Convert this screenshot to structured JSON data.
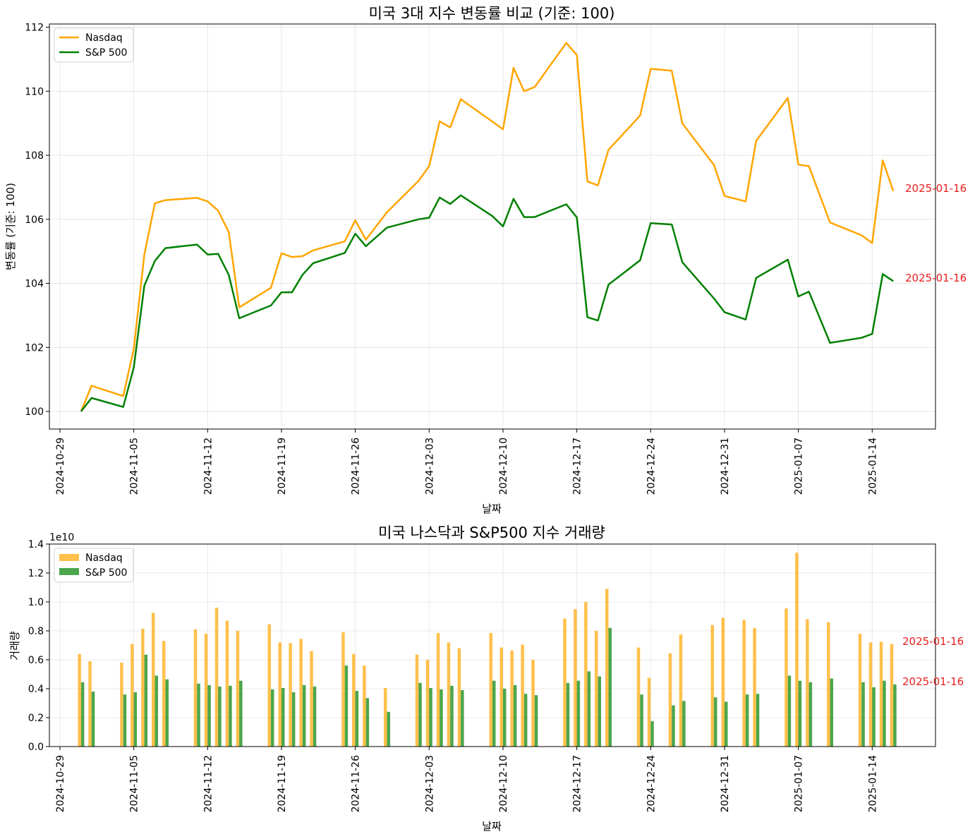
{
  "colors": {
    "nasdaq": "#FFA500",
    "sp500": "#008000",
    "annotation": "#E8201E"
  },
  "top": {
    "title": "미국 3대 지수 변동률 비교 (기준: 100)",
    "xlabel": "날짜",
    "ylabel": "변동률 (기준: 100)",
    "annotations": [
      "2025-01-16",
      "2025-01-16"
    ]
  },
  "bottom": {
    "title": "미국 나스닥과 S&P500 지수 거래량",
    "xlabel": "날짜",
    "ylabel": "거래량",
    "offset_label": "1e10",
    "annotations": [
      "2025-01-16",
      "2025-01-16"
    ]
  },
  "chart_data": [
    {
      "type": "line",
      "title": "미국 3대 지수 변동률 비교 (기준: 100)",
      "xlabel": "날짜",
      "ylabel": "변동률 (기준: 100)",
      "xlim": [
        "2024-10-28",
        "2025-01-20"
      ],
      "ylim": [
        99.45,
        112.1
      ],
      "xticks": [
        "2024-10-29",
        "2024-11-05",
        "2024-11-12",
        "2024-11-19",
        "2024-11-26",
        "2024-12-03",
        "2024-12-10",
        "2024-12-17",
        "2024-12-24",
        "2024-12-31",
        "2025-01-07",
        "2025-01-14"
      ],
      "yticks": [
        100,
        102,
        104,
        106,
        108,
        110,
        112
      ],
      "grid": true,
      "legend": "upper left",
      "x": [
        "2024-10-31",
        "2024-11-01",
        "2024-11-04",
        "2024-11-05",
        "2024-11-06",
        "2024-11-07",
        "2024-11-08",
        "2024-11-11",
        "2024-11-12",
        "2024-11-13",
        "2024-11-14",
        "2024-11-15",
        "2024-11-18",
        "2024-11-19",
        "2024-11-20",
        "2024-11-21",
        "2024-11-22",
        "2024-11-25",
        "2024-11-26",
        "2024-11-27",
        "2024-11-29",
        "2024-12-02",
        "2024-12-03",
        "2024-12-04",
        "2024-12-05",
        "2024-12-06",
        "2024-12-09",
        "2024-12-10",
        "2024-12-11",
        "2024-12-12",
        "2024-12-13",
        "2024-12-16",
        "2024-12-17",
        "2024-12-18",
        "2024-12-19",
        "2024-12-20",
        "2024-12-23",
        "2024-12-24",
        "2024-12-26",
        "2024-12-27",
        "2024-12-30",
        "2024-12-31",
        "2025-01-02",
        "2025-01-03",
        "2025-01-06",
        "2025-01-07",
        "2025-01-08",
        "2025-01-10",
        "2025-01-13",
        "2025-01-14",
        "2025-01-15",
        "2025-01-16"
      ],
      "series": [
        {
          "name": "Nasdaq",
          "values": [
            100.0,
            100.8,
            100.48,
            101.95,
            104.9,
            106.5,
            106.6,
            106.67,
            106.56,
            106.27,
            105.6,
            103.25,
            103.86,
            104.94,
            104.82,
            104.85,
            105.03,
            105.31,
            105.97,
            105.36,
            106.22,
            107.2,
            107.66,
            109.06,
            108.87,
            109.75,
            109.05,
            108.81,
            110.73,
            110.0,
            110.13,
            111.51,
            111.13,
            107.18,
            107.06,
            108.17,
            109.24,
            110.7,
            110.64,
            109.0,
            107.7,
            106.73,
            106.56,
            108.45,
            109.79,
            107.71,
            107.66,
            105.9,
            105.5,
            105.26,
            107.84,
            106.88
          ]
        },
        {
          "name": "S&P 500",
          "values": [
            100.0,
            100.42,
            100.14,
            101.37,
            103.93,
            104.7,
            105.1,
            105.21,
            104.9,
            104.92,
            104.27,
            102.91,
            103.31,
            103.72,
            103.72,
            104.27,
            104.63,
            104.95,
            105.55,
            105.16,
            105.74,
            106.0,
            106.05,
            106.68,
            106.48,
            106.75,
            106.1,
            105.78,
            106.64,
            106.07,
            106.07,
            106.47,
            106.06,
            102.94,
            102.84,
            103.96,
            104.72,
            105.88,
            105.84,
            104.66,
            103.53,
            103.1,
            102.87,
            104.17,
            104.74,
            103.59,
            103.74,
            102.14,
            102.3,
            102.42,
            104.29,
            104.07
          ]
        }
      ]
    },
    {
      "type": "bar",
      "title": "미국 나스닥과 S&P500 지수 거래량",
      "xlabel": "날짜",
      "ylabel": "거래량",
      "unit_multiplier": "1e10",
      "xlim": [
        "2024-10-28",
        "2025-01-20"
      ],
      "ylim": [
        0.0,
        1.4
      ],
      "xticks": [
        "2024-10-29",
        "2024-11-05",
        "2024-11-12",
        "2024-11-19",
        "2024-11-26",
        "2024-12-03",
        "2024-12-10",
        "2024-12-17",
        "2024-12-24",
        "2024-12-31",
        "2025-01-07",
        "2025-01-14"
      ],
      "yticks": [
        0.0,
        0.2,
        0.4,
        0.6,
        0.8,
        1.0,
        1.2,
        1.4
      ],
      "grid": true,
      "legend": "upper left",
      "x": [
        "2024-10-31",
        "2024-11-01",
        "2024-11-04",
        "2024-11-05",
        "2024-11-06",
        "2024-11-07",
        "2024-11-08",
        "2024-11-11",
        "2024-11-12",
        "2024-11-13",
        "2024-11-14",
        "2024-11-15",
        "2024-11-18",
        "2024-11-19",
        "2024-11-20",
        "2024-11-21",
        "2024-11-22",
        "2024-11-25",
        "2024-11-26",
        "2024-11-27",
        "2024-11-29",
        "2024-12-02",
        "2024-12-03",
        "2024-12-04",
        "2024-12-05",
        "2024-12-06",
        "2024-12-09",
        "2024-12-10",
        "2024-12-11",
        "2024-12-12",
        "2024-12-13",
        "2024-12-16",
        "2024-12-17",
        "2024-12-18",
        "2024-12-19",
        "2024-12-20",
        "2024-12-23",
        "2024-12-24",
        "2024-12-26",
        "2024-12-27",
        "2024-12-30",
        "2024-12-31",
        "2025-01-02",
        "2025-01-03",
        "2025-01-06",
        "2025-01-07",
        "2025-01-08",
        "2025-01-10",
        "2025-01-13",
        "2025-01-14",
        "2025-01-15",
        "2025-01-16"
      ],
      "series": [
        {
          "name": "Nasdaq",
          "values": [
            0.64,
            0.59,
            0.58,
            0.71,
            0.815,
            0.925,
            0.73,
            0.81,
            0.78,
            0.96,
            0.87,
            0.8,
            0.845,
            0.72,
            0.715,
            0.745,
            0.66,
            0.79,
            0.64,
            0.56,
            0.405,
            0.635,
            0.6,
            0.785,
            0.72,
            0.68,
            0.785,
            0.685,
            0.665,
            0.705,
            0.6,
            0.885,
            0.95,
            1.0,
            0.8,
            1.09,
            0.685,
            0.475,
            0.645,
            0.775,
            0.84,
            0.89,
            0.875,
            0.82,
            0.955,
            1.34,
            0.88,
            0.86,
            0.78,
            0.72,
            0.725,
            0.71
          ]
        },
        {
          "name": "S&P 500",
          "values": [
            0.445,
            0.38,
            0.36,
            0.375,
            0.635,
            0.49,
            0.465,
            0.435,
            0.425,
            0.415,
            0.42,
            0.455,
            0.395,
            0.405,
            0.375,
            0.425,
            0.415,
            0.56,
            0.385,
            0.335,
            0.24,
            0.44,
            0.405,
            0.395,
            0.42,
            0.39,
            0.455,
            0.4,
            0.425,
            0.365,
            0.355,
            0.44,
            0.455,
            0.52,
            0.485,
            0.82,
            0.36,
            0.175,
            0.285,
            0.315,
            0.34,
            0.31,
            0.36,
            0.365,
            0.49,
            0.455,
            0.445,
            0.47,
            0.445,
            0.41,
            0.455,
            0.43
          ]
        }
      ]
    }
  ]
}
